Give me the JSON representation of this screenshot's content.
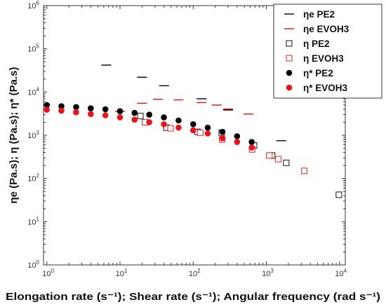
{
  "chart_data": {
    "type": "scatter",
    "xscale": "log",
    "yscale": "log",
    "xlim": [
      0.9,
      12000
    ],
    "ylim": [
      1,
      1000000
    ],
    "xticks": [
      {
        "value": 1,
        "base": "10",
        "exp": "0"
      },
      {
        "value": 10,
        "base": "10",
        "exp": "1"
      },
      {
        "value": 100,
        "base": "10",
        "exp": "2"
      },
      {
        "value": 1000,
        "base": "10",
        "exp": "3"
      },
      {
        "value": 10000,
        "base": "10",
        "exp": "4"
      }
    ],
    "yticks": [
      {
        "value": 1,
        "base": "10",
        "exp": "0"
      },
      {
        "value": 10,
        "base": "10",
        "exp": "1"
      },
      {
        "value": 100,
        "base": "10",
        "exp": "2"
      },
      {
        "value": 1000,
        "base": "10",
        "exp": "3"
      },
      {
        "value": 10000,
        "base": "10",
        "exp": "4"
      },
      {
        "value": 100000,
        "base": "10",
        "exp": "5"
      },
      {
        "value": 1000000,
        "base": "10",
        "exp": "6"
      }
    ],
    "xlabel": "Elongation rate (s⁻¹); Shear rate (s⁻¹); Angular frequency (rad s⁻¹)",
    "ylabel": "ηe (Pa.s); η (Pa.s); η* (Pa.s)",
    "legend_position": "top-right",
    "grid": false,
    "series": [
      {
        "name": "ηe PE2",
        "marker": "dash",
        "color": "#111111",
        "x": [
          6.5,
          20,
          40,
          130,
          300,
          1600
        ],
        "y": [
          42000,
          22000,
          14000,
          7000,
          4000,
          750
        ]
      },
      {
        "name": "ηe EVOH3",
        "marker": "dash",
        "color": "#e02020",
        "x": [
          10,
          20,
          33,
          63,
          130,
          210,
          300,
          570
        ],
        "y": [
          3600,
          5500,
          6800,
          6600,
          5700,
          5000,
          3800,
          3100
        ]
      },
      {
        "name": "η PE2",
        "marker": "open-square",
        "color": "#111111",
        "x": [
          19,
          43,
          115,
          245,
          680,
          1200,
          1870,
          9800
        ],
        "y": [
          2800,
          1500,
          1200,
          1150,
          580,
          340,
          230,
          42
        ]
      },
      {
        "name": "η EVOH3",
        "marker": "open-square",
        "color": "#e02020",
        "x": [
          22,
          49,
          125,
          250,
          640,
          1100,
          1450,
          3300
        ],
        "y": [
          2000,
          1450,
          1150,
          800,
          470,
          340,
          280,
          150
        ]
      },
      {
        "name": "η* PE2",
        "marker": "filled-circle",
        "color": "#000000",
        "x": [
          1,
          1.58,
          2.51,
          3.98,
          6.31,
          10,
          15.8,
          25.1,
          39.8,
          63.1,
          100,
          158,
          251,
          398,
          631
        ],
        "y": [
          5000,
          4700,
          4500,
          4200,
          4000,
          3600,
          3300,
          3000,
          2600,
          2200,
          1800,
          1500,
          1200,
          950,
          700
        ]
      },
      {
        "name": "η* EVOH3",
        "marker": "filled-circle",
        "color": "#e8141c",
        "x": [
          1,
          1.58,
          2.51,
          3.98,
          6.31,
          10,
          15.8,
          25.1,
          39.8,
          63.1,
          100,
          158,
          251,
          398,
          631
        ],
        "y": [
          3900,
          3700,
          3400,
          3100,
          2900,
          2600,
          2300,
          2000,
          1800,
          1500,
          1300,
          1100,
          850,
          700,
          520
        ]
      }
    ]
  }
}
